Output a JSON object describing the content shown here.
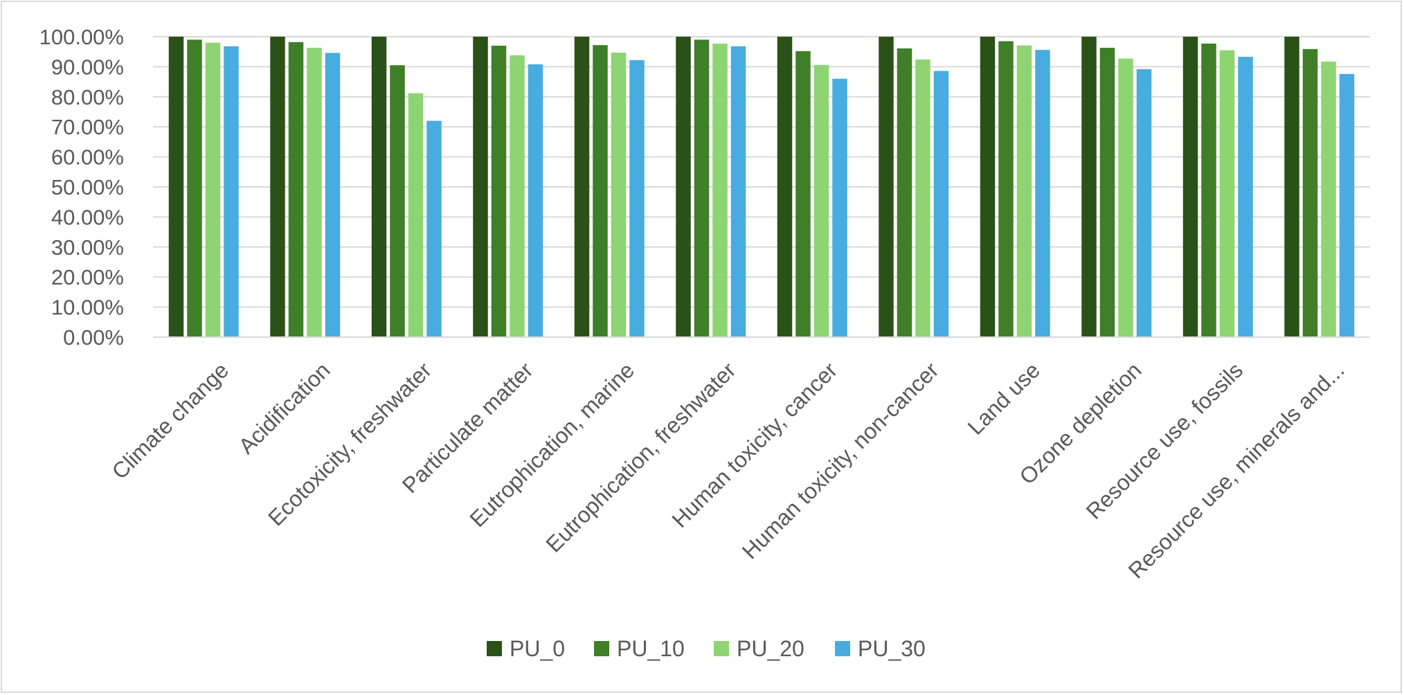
{
  "chart_data": {
    "type": "bar",
    "title": "",
    "xlabel": "",
    "ylabel": "",
    "ylim": [
      0,
      100
    ],
    "y_ticks": [
      "0.00%",
      "10.00%",
      "20.00%",
      "30.00%",
      "40.00%",
      "50.00%",
      "60.00%",
      "70.00%",
      "80.00%",
      "90.00%",
      "100.00%"
    ],
    "grid": true,
    "legend_position": "bottom",
    "categories": [
      "Climate change",
      "Acidification",
      "Ecotoxicity, freshwater",
      "Particulate matter",
      "Eutrophication, marine",
      "Eutrophication, freshwater",
      "Human toxicity, cancer",
      "Human toxicity, non-cancer",
      "Land use",
      "Ozone depletion",
      "Resource use, fossils",
      "Resource use, minerals and..."
    ],
    "series": [
      {
        "name": "PU_0",
        "color": "#2a5218",
        "values": [
          100,
          100,
          100,
          100,
          100,
          100,
          100,
          100,
          100,
          100,
          100,
          100
        ]
      },
      {
        "name": "PU_10",
        "color": "#3e7f28",
        "values": [
          99.0,
          98.2,
          90.5,
          97.0,
          97.2,
          99.0,
          95.2,
          96.1,
          98.5,
          96.3,
          97.7,
          95.9
        ]
      },
      {
        "name": "PU_20",
        "color": "#8fd472",
        "values": [
          98.0,
          96.3,
          81.2,
          93.8,
          94.7,
          97.7,
          90.6,
          92.4,
          97.1,
          92.7,
          95.5,
          91.7
        ]
      },
      {
        "name": "PU_30",
        "color": "#48ace0",
        "values": [
          96.8,
          94.6,
          72.0,
          90.8,
          92.2,
          96.8,
          86.0,
          88.6,
          95.6,
          89.2,
          93.3,
          87.6
        ]
      }
    ]
  }
}
